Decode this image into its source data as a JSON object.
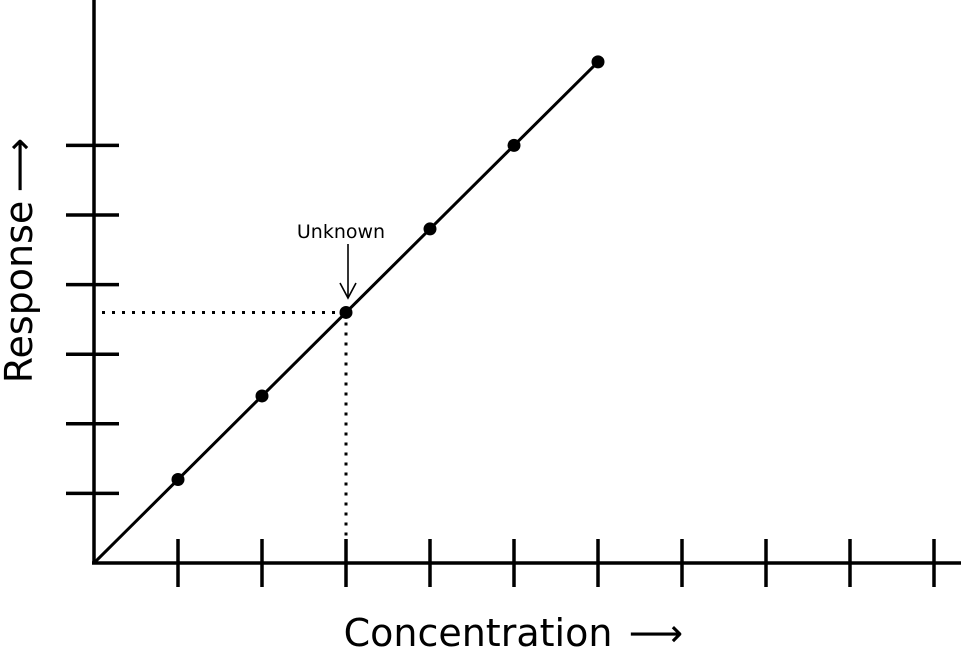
{
  "chart_data": {
    "type": "scatter",
    "title": "",
    "xlabel": "Concentration",
    "ylabel": "Response",
    "xlabel_arrow": "⟶",
    "ylabel_arrow": "⟶",
    "xlim": [
      0,
      10.8
    ],
    "ylim": [
      0,
      7.2
    ],
    "x_ticks": [
      1,
      2,
      3,
      4,
      5,
      6,
      7,
      8,
      9,
      10
    ],
    "y_ticks": [
      1,
      2,
      3,
      4,
      5,
      6
    ],
    "grid": false,
    "series": [
      {
        "points": [
          {
            "x": 1.0,
            "y": 1.2
          },
          {
            "x": 2.0,
            "y": 2.4
          },
          {
            "x": 3.0,
            "y": 3.6
          },
          {
            "x": 4.0,
            "y": 4.8
          },
          {
            "x": 5.0,
            "y": 6.0
          },
          {
            "x": 6.0,
            "y": 7.2
          }
        ]
      }
    ],
    "fit_line": {
      "x": [
        0,
        6.0
      ],
      "y": [
        0,
        7.2
      ]
    },
    "annotation": {
      "text": "Unknown",
      "x": 3.0,
      "y": 3.6
    }
  }
}
